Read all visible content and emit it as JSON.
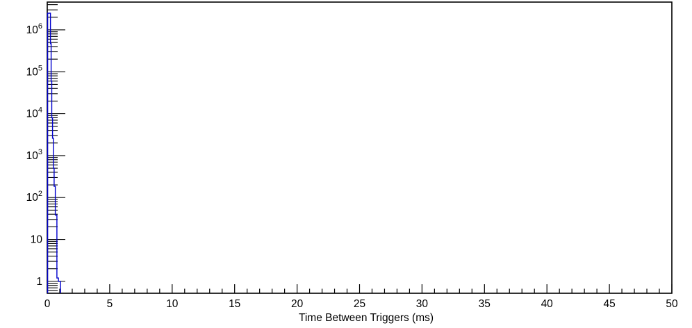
{
  "chart_data": {
    "type": "histogram",
    "title": "",
    "xlabel": "Time Between Triggers (ms)",
    "ylabel": "",
    "x_range": [
      0,
      50
    ],
    "x_major_tick_step": 5,
    "x_minor_tick_step": 1,
    "x_tick_labels": [
      "0",
      "5",
      "10",
      "15",
      "20",
      "25",
      "30",
      "35",
      "40",
      "45",
      "50"
    ],
    "y_scale": "log",
    "y_range": [
      0.52,
      4600000
    ],
    "y_decade_labels": [
      {
        "mantissa": "1",
        "exp": ""
      },
      {
        "mantissa": "10",
        "exp": ""
      },
      {
        "mantissa": "10",
        "exp": "2"
      },
      {
        "mantissa": "10",
        "exp": "3"
      },
      {
        "mantissa": "10",
        "exp": "4"
      },
      {
        "mantissa": "10",
        "exp": "5"
      },
      {
        "mantissa": "10",
        "exp": "6"
      }
    ],
    "grid": false,
    "legend": false,
    "colors": {
      "histogram": "#0000cd",
      "axis": "#000000",
      "background": "#ffffff"
    },
    "series": [
      {
        "name": "time-between-triggers",
        "color": "#0000cd",
        "steps": [
          {
            "x0": 0.0,
            "x1": 0.22,
            "count": 2500000
          },
          {
            "x0": 0.22,
            "x1": 0.28,
            "count": 470000
          },
          {
            "x0": 0.28,
            "x1": 0.33,
            "count": 60000
          },
          {
            "x0": 0.33,
            "x1": 0.39,
            "count": 8000
          },
          {
            "x0": 0.39,
            "x1": 0.46,
            "count": 2600
          },
          {
            "x0": 0.46,
            "x1": 0.52,
            "count": 500
          },
          {
            "x0": 0.52,
            "x1": 0.61,
            "count": 185
          },
          {
            "x0": 0.61,
            "x1": 0.74,
            "count": 38
          },
          {
            "x0": 0.74,
            "x1": 0.86,
            "count": 1.2
          },
          {
            "x0": 0.86,
            "x1": 1.03,
            "count": 1.0
          }
        ]
      }
    ]
  }
}
